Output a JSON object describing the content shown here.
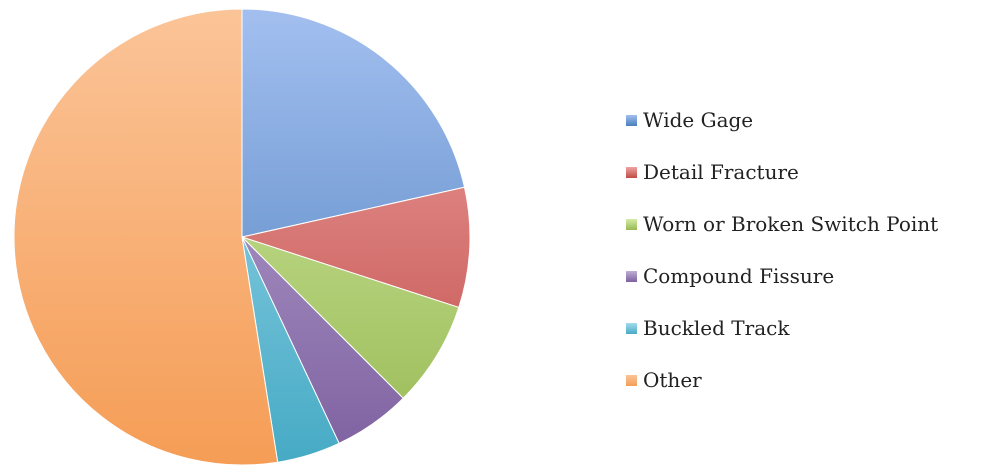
{
  "chart_data": {
    "type": "pie",
    "title": "",
    "categories": [
      "Wide Gage",
      "Detail Fracture",
      "Worn or Broken Switch Point",
      "Compound Fissure",
      "Buckled Track",
      "Other"
    ],
    "values": [
      21.5,
      8.5,
      7.5,
      5.5,
      4.5,
      52.5
    ],
    "start_angle_deg": 0,
    "direction": "clockwise",
    "legend_position": "right",
    "colors": [
      "#4a7ebb",
      "#be4b48",
      "#98b954",
      "#7d60a0",
      "#46aac5",
      "#f59d56"
    ],
    "colors_light": [
      "#a3bff0",
      "#f0a3a1",
      "#d4eda7",
      "#bfaed6",
      "#a3dcec",
      "#fbc498"
    ]
  }
}
